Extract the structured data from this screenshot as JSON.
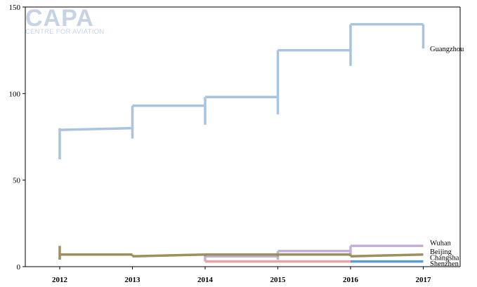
{
  "logo": {
    "main": "CAPA",
    "sub": "CENTRE FOR AVIATION"
  },
  "chart_data": {
    "type": "line",
    "title": "",
    "xlabel": "",
    "ylabel": "",
    "categories": [
      "2012",
      "2013",
      "2014",
      "2015",
      "2016",
      "2017"
    ],
    "ylim": [
      0,
      150
    ],
    "yticks": [
      0,
      50,
      100,
      150
    ],
    "grid": false,
    "series": [
      {
        "name": "Guangzhou",
        "color": "#a9c4de",
        "segments": [
          {
            "x": "2012",
            "y_start": 79,
            "y_end": 80,
            "range": [
              62,
              80
            ]
          },
          {
            "x": "2013",
            "y_start": 93,
            "y_end": 93,
            "range": [
              74,
              93
            ]
          },
          {
            "x": "2014",
            "y_start": 98,
            "y_end": 98,
            "range": [
              82,
              98
            ]
          },
          {
            "x": "2015",
            "y_start": 125,
            "y_end": 125,
            "range": [
              88,
              125
            ]
          },
          {
            "x": "2016",
            "y_start": 140,
            "y_end": 140,
            "range": [
              116,
              140
            ]
          },
          {
            "x": "2017",
            "range": [
              126,
              140
            ]
          }
        ]
      },
      {
        "name": "Wuhan",
        "color": "#c5b0d5",
        "segments": [
          {
            "x": "2014",
            "y_start": 6,
            "y_end": 6,
            "range": [
              3,
              7
            ]
          },
          {
            "x": "2015",
            "y_start": 9,
            "y_end": 9,
            "range": [
              4,
              9
            ]
          },
          {
            "x": "2016",
            "y_start": 12,
            "y_end": 12,
            "range": [
              6,
              12
            ]
          }
        ]
      },
      {
        "name": "Beijing",
        "color": "#e8a4a4",
        "segments": [
          {
            "x": "2014",
            "y_start": 3,
            "y_end": 3,
            "range": [
              3,
              3
            ]
          },
          {
            "x": "2015",
            "y_start": 3,
            "y_end": 3,
            "range": [
              3,
              3
            ]
          }
        ]
      },
      {
        "name": "Changsha",
        "color": "#9d8f5e",
        "segments": [
          {
            "x": "2012",
            "y_start": 7,
            "y_end": 7,
            "range": [
              4,
              12
            ]
          },
          {
            "x": "2013",
            "y_start": 6,
            "y_end": 7,
            "range": [
              6,
              7
            ]
          },
          {
            "x": "2014",
            "y_start": 7,
            "y_end": 7,
            "range": [
              6,
              7
            ]
          },
          {
            "x": "2015",
            "y_start": 7,
            "y_end": 7,
            "range": [
              6,
              7
            ]
          },
          {
            "x": "2016",
            "y_start": 6,
            "y_end": 7,
            "range": [
              6,
              7
            ]
          }
        ]
      },
      {
        "name": "Shenzhen",
        "color": "#5b9bd5",
        "segments": [
          {
            "x": "2016",
            "y_start": 3,
            "y_end": 3,
            "range": [
              3,
              3
            ]
          }
        ]
      }
    ],
    "series_labels": [
      {
        "name": "Guangzhou",
        "y": 126
      },
      {
        "name": "Wuhan",
        "y": 14
      },
      {
        "name": "Beijing",
        "y": 9
      },
      {
        "name": "Changsha",
        "y": 5.5
      },
      {
        "name": "Shenzhen",
        "y": 2
      }
    ]
  }
}
